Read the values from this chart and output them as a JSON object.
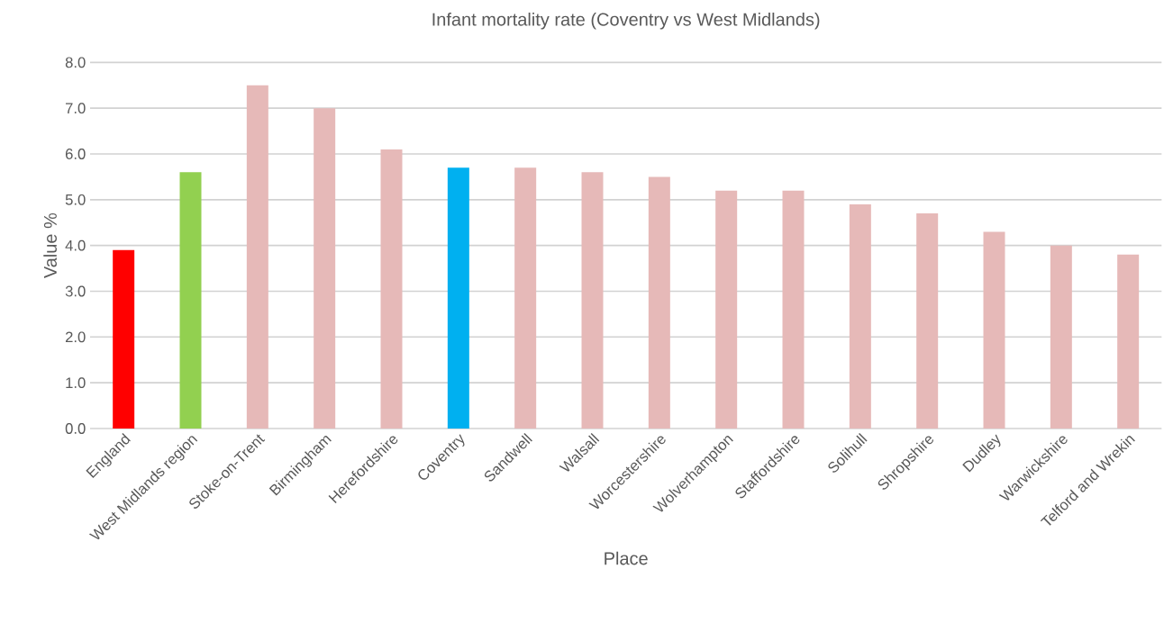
{
  "chart_data": {
    "type": "bar",
    "title": "Infant mortality rate (Coventry vs West Midlands)",
    "xlabel": "Place",
    "ylabel": "Value %",
    "categories": [
      "England",
      "West Midlands region",
      "Stoke-on-Trent",
      "Birmingham",
      "Herefordshire",
      "Coventry",
      "Sandwell",
      "Walsall",
      "Worcestershire",
      "Wolverhampton",
      "Staffordshire",
      "Solihull",
      "Shropshire",
      "Dudley",
      "Warwickshire",
      "Telford and Wrekin"
    ],
    "values": [
      3.9,
      5.6,
      7.5,
      7.0,
      6.1,
      5.7,
      5.7,
      5.6,
      5.5,
      5.2,
      5.2,
      4.9,
      4.7,
      4.3,
      4.0,
      3.8
    ],
    "colors": [
      "#ff0000",
      "#92d050",
      "#e6b9b8",
      "#e6b9b8",
      "#e6b9b8",
      "#00b0f0",
      "#e6b9b8",
      "#e6b9b8",
      "#e6b9b8",
      "#e6b9b8",
      "#e6b9b8",
      "#e6b9b8",
      "#e6b9b8",
      "#e6b9b8",
      "#e6b9b8",
      "#e6b9b8"
    ],
    "ylim": [
      0,
      8
    ],
    "yticks": [
      {
        "value": 0,
        "label": "0.0"
      },
      {
        "value": 1,
        "label": "1.0"
      },
      {
        "value": 2,
        "label": "2.0"
      },
      {
        "value": 3,
        "label": "3.0"
      },
      {
        "value": 4,
        "label": "4.0"
      },
      {
        "value": 5,
        "label": "5.0"
      },
      {
        "value": 6,
        "label": "6.0"
      },
      {
        "value": 7,
        "label": "7.0"
      },
      {
        "value": 8,
        "label": "8.0"
      }
    ],
    "grid": "y"
  }
}
